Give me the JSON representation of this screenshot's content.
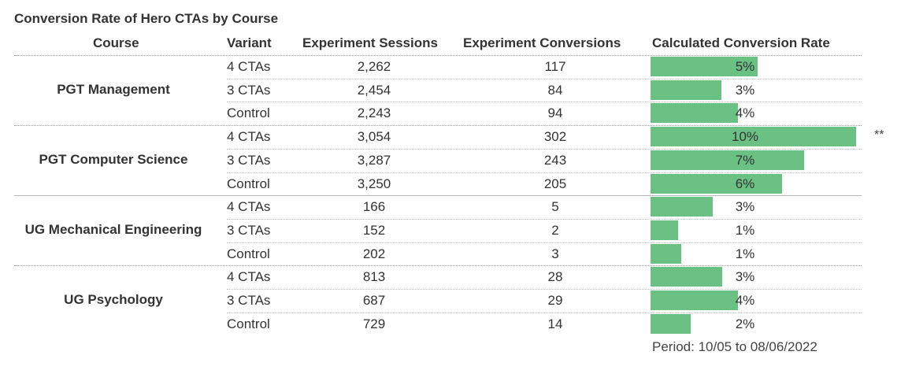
{
  "chart_data": {
    "type": "table",
    "title": "Conversion Rate of Hero CTAs by Course",
    "columns": [
      "Course",
      "Variant",
      "Experiment Sessions",
      "Experiment Conversions",
      "Calculated Conversion Rate"
    ],
    "bar_max_rate": 10,
    "bar_color": "#6bc184",
    "groups": [
      {
        "course": "PGT Management",
        "rows": [
          {
            "variant": "4 CTAs",
            "sessions": "2,262",
            "conversions": "117",
            "rate": "5%",
            "rate_value": 5.17,
            "flag": ""
          },
          {
            "variant": "3 CTAs",
            "sessions": "2,454",
            "conversions": "84",
            "rate": "3%",
            "rate_value": 3.42,
            "flag": ""
          },
          {
            "variant": "Control",
            "sessions": "2,243",
            "conversions": "94",
            "rate": "4%",
            "rate_value": 4.19,
            "flag": ""
          }
        ]
      },
      {
        "course": "PGT Computer Science",
        "rows": [
          {
            "variant": "4 CTAs",
            "sessions": "3,054",
            "conversions": "302",
            "rate": "10%",
            "rate_value": 9.89,
            "flag": "**"
          },
          {
            "variant": "3 CTAs",
            "sessions": "3,287",
            "conversions": "243",
            "rate": "7%",
            "rate_value": 7.39,
            "flag": ""
          },
          {
            "variant": "Control",
            "sessions": "3,250",
            "conversions": "205",
            "rate": "6%",
            "rate_value": 6.31,
            "flag": ""
          }
        ]
      },
      {
        "course": "UG Mechanical Engineering",
        "rows": [
          {
            "variant": "4 CTAs",
            "sessions": "166",
            "conversions": "5",
            "rate": "3%",
            "rate_value": 3.01,
            "flag": ""
          },
          {
            "variant": "3 CTAs",
            "sessions": "152",
            "conversions": "2",
            "rate": "1%",
            "rate_value": 1.32,
            "flag": ""
          },
          {
            "variant": "Control",
            "sessions": "202",
            "conversions": "3",
            "rate": "1%",
            "rate_value": 1.49,
            "flag": ""
          }
        ]
      },
      {
        "course": "UG Psychology",
        "rows": [
          {
            "variant": "4 CTAs",
            "sessions": "813",
            "conversions": "28",
            "rate": "3%",
            "rate_value": 3.44,
            "flag": ""
          },
          {
            "variant": "3 CTAs",
            "sessions": "687",
            "conversions": "29",
            "rate": "4%",
            "rate_value": 4.22,
            "flag": ""
          },
          {
            "variant": "Control",
            "sessions": "729",
            "conversions": "14",
            "rate": "2%",
            "rate_value": 1.92,
            "flag": ""
          }
        ]
      }
    ],
    "footnote": "Period: 10/05 to 08/06/2022"
  }
}
